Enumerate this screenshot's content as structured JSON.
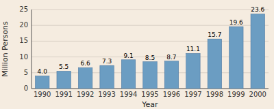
{
  "chart_data": {
    "type": "bar",
    "categories": [
      "1990",
      "1991",
      "1992",
      "1993",
      "1994",
      "1995",
      "1996",
      "1997",
      "1998",
      "1999",
      "2000"
    ],
    "values": [
      4.0,
      5.5,
      6.6,
      7.3,
      9.1,
      8.5,
      8.7,
      11.1,
      15.7,
      19.6,
      23.6
    ],
    "value_labels": [
      "4.0",
      "5.5",
      "6.6",
      "7.3",
      "9.1",
      "8.5",
      "8.7",
      "11.1",
      "15.7",
      "19.6",
      "23.6"
    ],
    "color": "#6b9dc2",
    "xlabel": "Year",
    "ylabel": "Million Persons",
    "ylim": [
      0,
      25
    ],
    "yticks": [
      0,
      5,
      10,
      15,
      20,
      25
    ],
    "grid": true,
    "data_labels": true
  }
}
